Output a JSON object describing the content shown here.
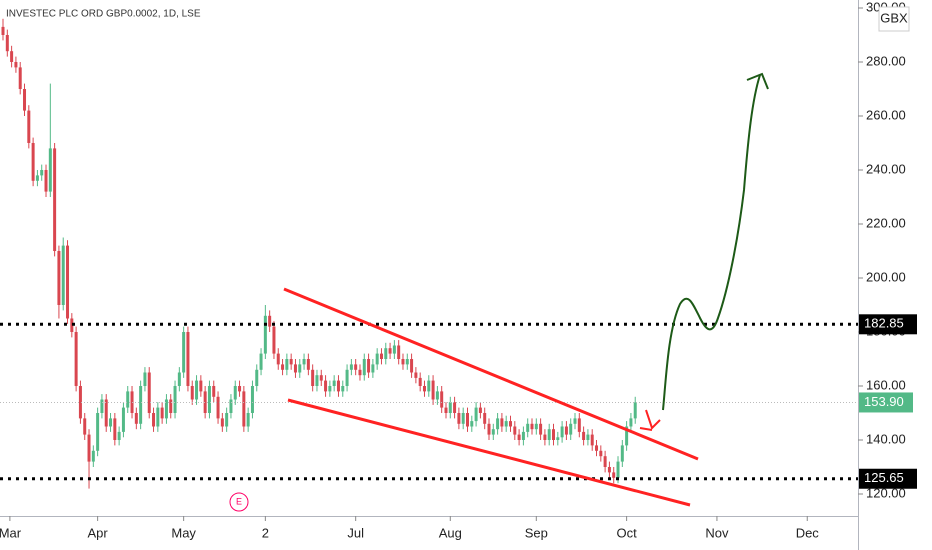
{
  "chart_data": {
    "type": "candlestick",
    "title": "INVESTEC PLC ORD GBP0.0002, 1D, LSE",
    "currency": "GBX",
    "earnings_marker": "E",
    "up_color": "#53b987",
    "down_color": "#d9464f",
    "ylim": [
      111.85,
      302.96
    ],
    "yticks": [
      {
        "value": 120,
        "label": "120.00"
      },
      {
        "value": 140,
        "label": "140.00"
      },
      {
        "value": 160,
        "label": "160.00"
      },
      {
        "value": 180,
        "label": "180.00"
      },
      {
        "value": 200,
        "label": "200.00"
      },
      {
        "value": 220,
        "label": "220.00"
      },
      {
        "value": 240,
        "label": "240.00"
      },
      {
        "value": 260,
        "label": "260.00"
      },
      {
        "value": 280,
        "label": "280.00"
      },
      {
        "value": 300,
        "label": "300.00"
      }
    ],
    "xlim": [
      -0.7,
      198.8
    ],
    "xticks": [
      {
        "value": 1.6,
        "label": "Mar"
      },
      {
        "value": 22,
        "label": "Apr"
      },
      {
        "value": 42,
        "label": "May"
      },
      {
        "value": 61,
        "label": "2"
      },
      {
        "value": 82,
        "label": "Jul"
      },
      {
        "value": 104,
        "label": "Aug"
      },
      {
        "value": 124,
        "label": "Sep"
      },
      {
        "value": 145,
        "label": "Oct"
      },
      {
        "value": 166,
        "label": "Nov"
      },
      {
        "value": 187,
        "label": "Dec"
      }
    ],
    "grid": false,
    "levels": [
      {
        "value": 182.85,
        "label": "182.85",
        "color": "#000000"
      },
      {
        "value": 125.65,
        "label": "125.65",
        "color": "#000000"
      }
    ],
    "last_price": {
      "value": 153.9,
      "label": "153.90",
      "color": "#53b987"
    },
    "ohlc": {
      "open": [
        293,
        290,
        284,
        280,
        278,
        270,
        262,
        250,
        236,
        238,
        240,
        232,
        248,
        210,
        190,
        212,
        185,
        180,
        160,
        148,
        142,
        132,
        136,
        150,
        155,
        145,
        148,
        140,
        143,
        152,
        158,
        150,
        146,
        160,
        165,
        150,
        145,
        152,
        148,
        155,
        150,
        160,
        165,
        180,
        160,
        155,
        162,
        158,
        150,
        160,
        156,
        148,
        145,
        150,
        155,
        160,
        158,
        145,
        150,
        160,
        166,
        172,
        186,
        182,
        172,
        168,
        166,
        170,
        168,
        165,
        168,
        170,
        166,
        160,
        164,
        162,
        158,
        160,
        162,
        158,
        160,
        166,
        168,
        166,
        164,
        170,
        165,
        168,
        172,
        170,
        174,
        172,
        175,
        170,
        168,
        170,
        165,
        163,
        160,
        158,
        162,
        155,
        158,
        152,
        150,
        154,
        150,
        146,
        150,
        145,
        147,
        152,
        150,
        146,
        142,
        144,
        148,
        145,
        147,
        145,
        142,
        140,
        143,
        146,
        144,
        146,
        142,
        140,
        144,
        140,
        141,
        145,
        142,
        146,
        148,
        143,
        140,
        142,
        138,
        136,
        134,
        130,
        128,
        126,
        132,
        138,
        145,
        148
      ],
      "high": [
        296,
        292,
        286,
        282,
        280,
        272,
        264,
        252,
        240,
        242,
        242,
        272,
        250,
        212,
        215,
        214,
        187,
        182,
        162,
        150,
        144,
        138,
        152,
        157,
        157,
        150,
        150,
        145,
        154,
        160,
        160,
        152,
        162,
        167,
        167,
        152,
        154,
        154,
        157,
        157,
        162,
        167,
        182,
        182,
        162,
        164,
        164,
        160,
        162,
        162,
        158,
        150,
        152,
        157,
        162,
        162,
        160,
        152,
        162,
        168,
        174,
        190,
        188,
        184,
        174,
        170,
        172,
        172,
        170,
        170,
        172,
        172,
        168,
        166,
        166,
        164,
        162,
        164,
        164,
        162,
        168,
        170,
        170,
        168,
        172,
        172,
        170,
        174,
        174,
        176,
        176,
        177,
        177,
        172,
        172,
        172,
        167,
        165,
        162,
        164,
        164,
        160,
        160,
        154,
        156,
        156,
        152,
        152,
        152,
        149,
        154,
        154,
        152,
        148,
        146,
        150,
        150,
        149,
        149,
        147,
        144,
        145,
        148,
        148,
        148,
        148,
        144,
        146,
        146,
        143,
        147,
        147,
        148,
        150,
        150,
        145,
        144,
        144,
        140,
        138,
        136,
        132,
        130,
        134,
        140,
        147,
        150,
        156
      ],
      "low": [
        288,
        282,
        278,
        276,
        268,
        260,
        248,
        234,
        234,
        236,
        230,
        230,
        208,
        185,
        188,
        183,
        178,
        158,
        146,
        140,
        122,
        130,
        134,
        148,
        143,
        143,
        138,
        138,
        141,
        150,
        148,
        144,
        144,
        158,
        148,
        143,
        143,
        146,
        146,
        148,
        148,
        158,
        163,
        158,
        153,
        153,
        156,
        148,
        148,
        154,
        146,
        143,
        143,
        148,
        153,
        156,
        143,
        143,
        148,
        158,
        164,
        170,
        180,
        170,
        166,
        164,
        164,
        166,
        163,
        163,
        166,
        164,
        158,
        158,
        160,
        156,
        156,
        158,
        156,
        156,
        158,
        164,
        164,
        162,
        162,
        163,
        163,
        166,
        168,
        168,
        170,
        170,
        168,
        166,
        166,
        163,
        161,
        158,
        156,
        156,
        153,
        153,
        150,
        148,
        148,
        148,
        144,
        144,
        143,
        143,
        145,
        148,
        144,
        140,
        140,
        142,
        143,
        143,
        143,
        140,
        138,
        138,
        141,
        142,
        142,
        140,
        138,
        138,
        138,
        138,
        139,
        140,
        140,
        144,
        141,
        138,
        138,
        136,
        134,
        132,
        128,
        126,
        124,
        124,
        130,
        136,
        143,
        146
      ],
      "close": [
        290,
        284,
        280,
        278,
        270,
        262,
        250,
        236,
        238,
        240,
        232,
        248,
        210,
        190,
        212,
        185,
        180,
        160,
        148,
        142,
        132,
        136,
        150,
        155,
        145,
        148,
        140,
        143,
        152,
        158,
        150,
        146,
        160,
        165,
        150,
        145,
        152,
        148,
        155,
        150,
        160,
        165,
        180,
        160,
        155,
        162,
        158,
        150,
        160,
        156,
        148,
        145,
        150,
        155,
        160,
        158,
        145,
        150,
        160,
        166,
        172,
        186,
        182,
        172,
        168,
        166,
        170,
        168,
        165,
        168,
        170,
        166,
        160,
        164,
        162,
        158,
        160,
        162,
        158,
        160,
        166,
        168,
        166,
        164,
        170,
        165,
        168,
        172,
        170,
        174,
        172,
        175,
        170,
        168,
        170,
        165,
        163,
        160,
        158,
        162,
        155,
        158,
        152,
        150,
        154,
        150,
        146,
        150,
        145,
        147,
        152,
        150,
        146,
        142,
        144,
        148,
        145,
        147,
        145,
        142,
        140,
        143,
        146,
        144,
        146,
        142,
        140,
        144,
        140,
        141,
        145,
        142,
        146,
        148,
        143,
        140,
        142,
        138,
        136,
        134,
        130,
        128,
        126,
        132,
        138,
        145,
        148,
        153.9
      ]
    }
  }
}
